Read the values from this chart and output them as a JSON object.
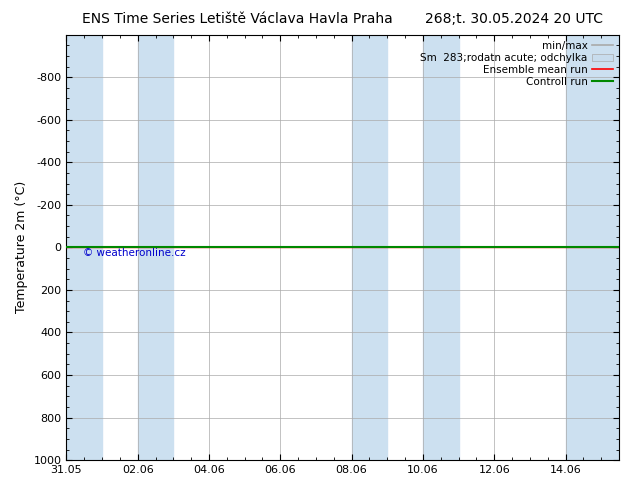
{
  "title_left": "ENS Time Series Letiště Václava Havla Praha",
  "title_right": "268;t. 30.05.2024 20 UTC",
  "ylabel": "Temperature 2m (°C)",
  "ylim_top": -1000,
  "ylim_bottom": 1000,
  "yticks": [
    -800,
    -600,
    -400,
    -200,
    0,
    200,
    400,
    600,
    800,
    1000
  ],
  "xtick_labels": [
    "31.05",
    "02.06",
    "04.06",
    "06.06",
    "08.06",
    "10.06",
    "12.06",
    "14.06"
  ],
  "xtick_positions": [
    0,
    2,
    4,
    6,
    8,
    10,
    12,
    14
  ],
  "blue_bands": [
    [
      0.0,
      1.0
    ],
    [
      2.0,
      3.0
    ],
    [
      8.0,
      9.0
    ],
    [
      10.0,
      11.0
    ],
    [
      14.0,
      15.5
    ]
  ],
  "blue_band_color": "#cce0f0",
  "ensemble_mean_color": "#ff0000",
  "control_run_color": "#008800",
  "watermark": "© weatheronline.cz",
  "watermark_color": "#0000cc",
  "background_color": "#ffffff",
  "grid_color": "#aaaaaa",
  "title_fontsize": 10,
  "tick_fontsize": 8,
  "ylabel_fontsize": 9,
  "legend_fontsize": 7.5,
  "minmax_color": "#aaaaaa",
  "stddev_color": "#c8dced"
}
